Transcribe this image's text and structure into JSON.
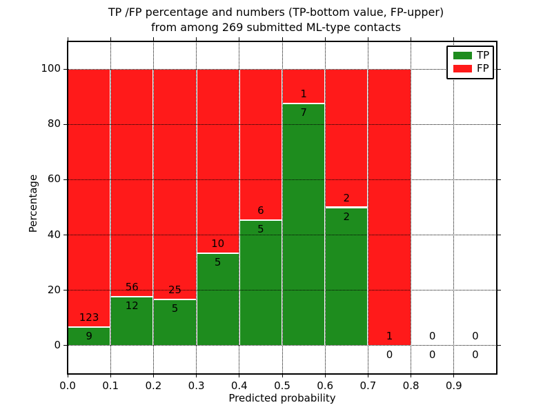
{
  "figure": {
    "title_line1": "TP /FP percentage and numbers (TP-bottom value, FP-upper)",
    "title_line2": "from among 269 submitted ML-type contacts",
    "xlabel": "Predicted probability",
    "ylabel": "Percentage"
  },
  "colors": {
    "tp_green": "#1e8c1e",
    "fp_red": "#ff1a1a",
    "grid": "#000000",
    "bar_edge": "#ffffff",
    "background": "#ffffff",
    "text": "#000000"
  },
  "chart_data": {
    "type": "bar",
    "stacked": true,
    "normalized_to_percent": true,
    "title": "TP /FP percentage and numbers (TP-bottom value, FP-upper) from among 269 submitted ML-type contacts",
    "xlabel": "Predicted probability",
    "ylabel": "Percentage",
    "xlim": [
      0.0,
      1.0
    ],
    "ylim": [
      -10,
      110
    ],
    "grid": true,
    "grid_style": "dotted",
    "total_contacts": 269,
    "bin_width": 0.1,
    "categories": [
      "0.0-0.1",
      "0.1-0.2",
      "0.2-0.3",
      "0.3-0.4",
      "0.4-0.5",
      "0.5-0.6",
      "0.6-0.7",
      "0.7-0.8",
      "0.8-0.9",
      "0.9-1.0"
    ],
    "x_ticks": [
      "0.0",
      "0.1",
      "0.2",
      "0.3",
      "0.4",
      "0.5",
      "0.6",
      "0.7",
      "0.8",
      "0.9"
    ],
    "y_ticks": [
      "0",
      "20",
      "40",
      "60",
      "80",
      "100"
    ],
    "series": [
      {
        "name": "TP",
        "color": "#1e8c1e",
        "values": [
          9,
          12,
          5,
          5,
          5,
          7,
          2,
          0,
          0,
          0
        ]
      },
      {
        "name": "FP",
        "color": "#ff1a1a",
        "values": [
          123,
          56,
          25,
          10,
          6,
          1,
          2,
          1,
          0,
          0
        ]
      }
    ],
    "tp_percent_of_bin": [
      6.8,
      17.6,
      16.7,
      33.3,
      45.5,
      87.5,
      50.0,
      0.0,
      null,
      null
    ],
    "legend": {
      "position": "upper right",
      "entries": [
        {
          "label": "TP",
          "color": "#1e8c1e"
        },
        {
          "label": "FP",
          "color": "#ff1a1a"
        }
      ]
    }
  }
}
